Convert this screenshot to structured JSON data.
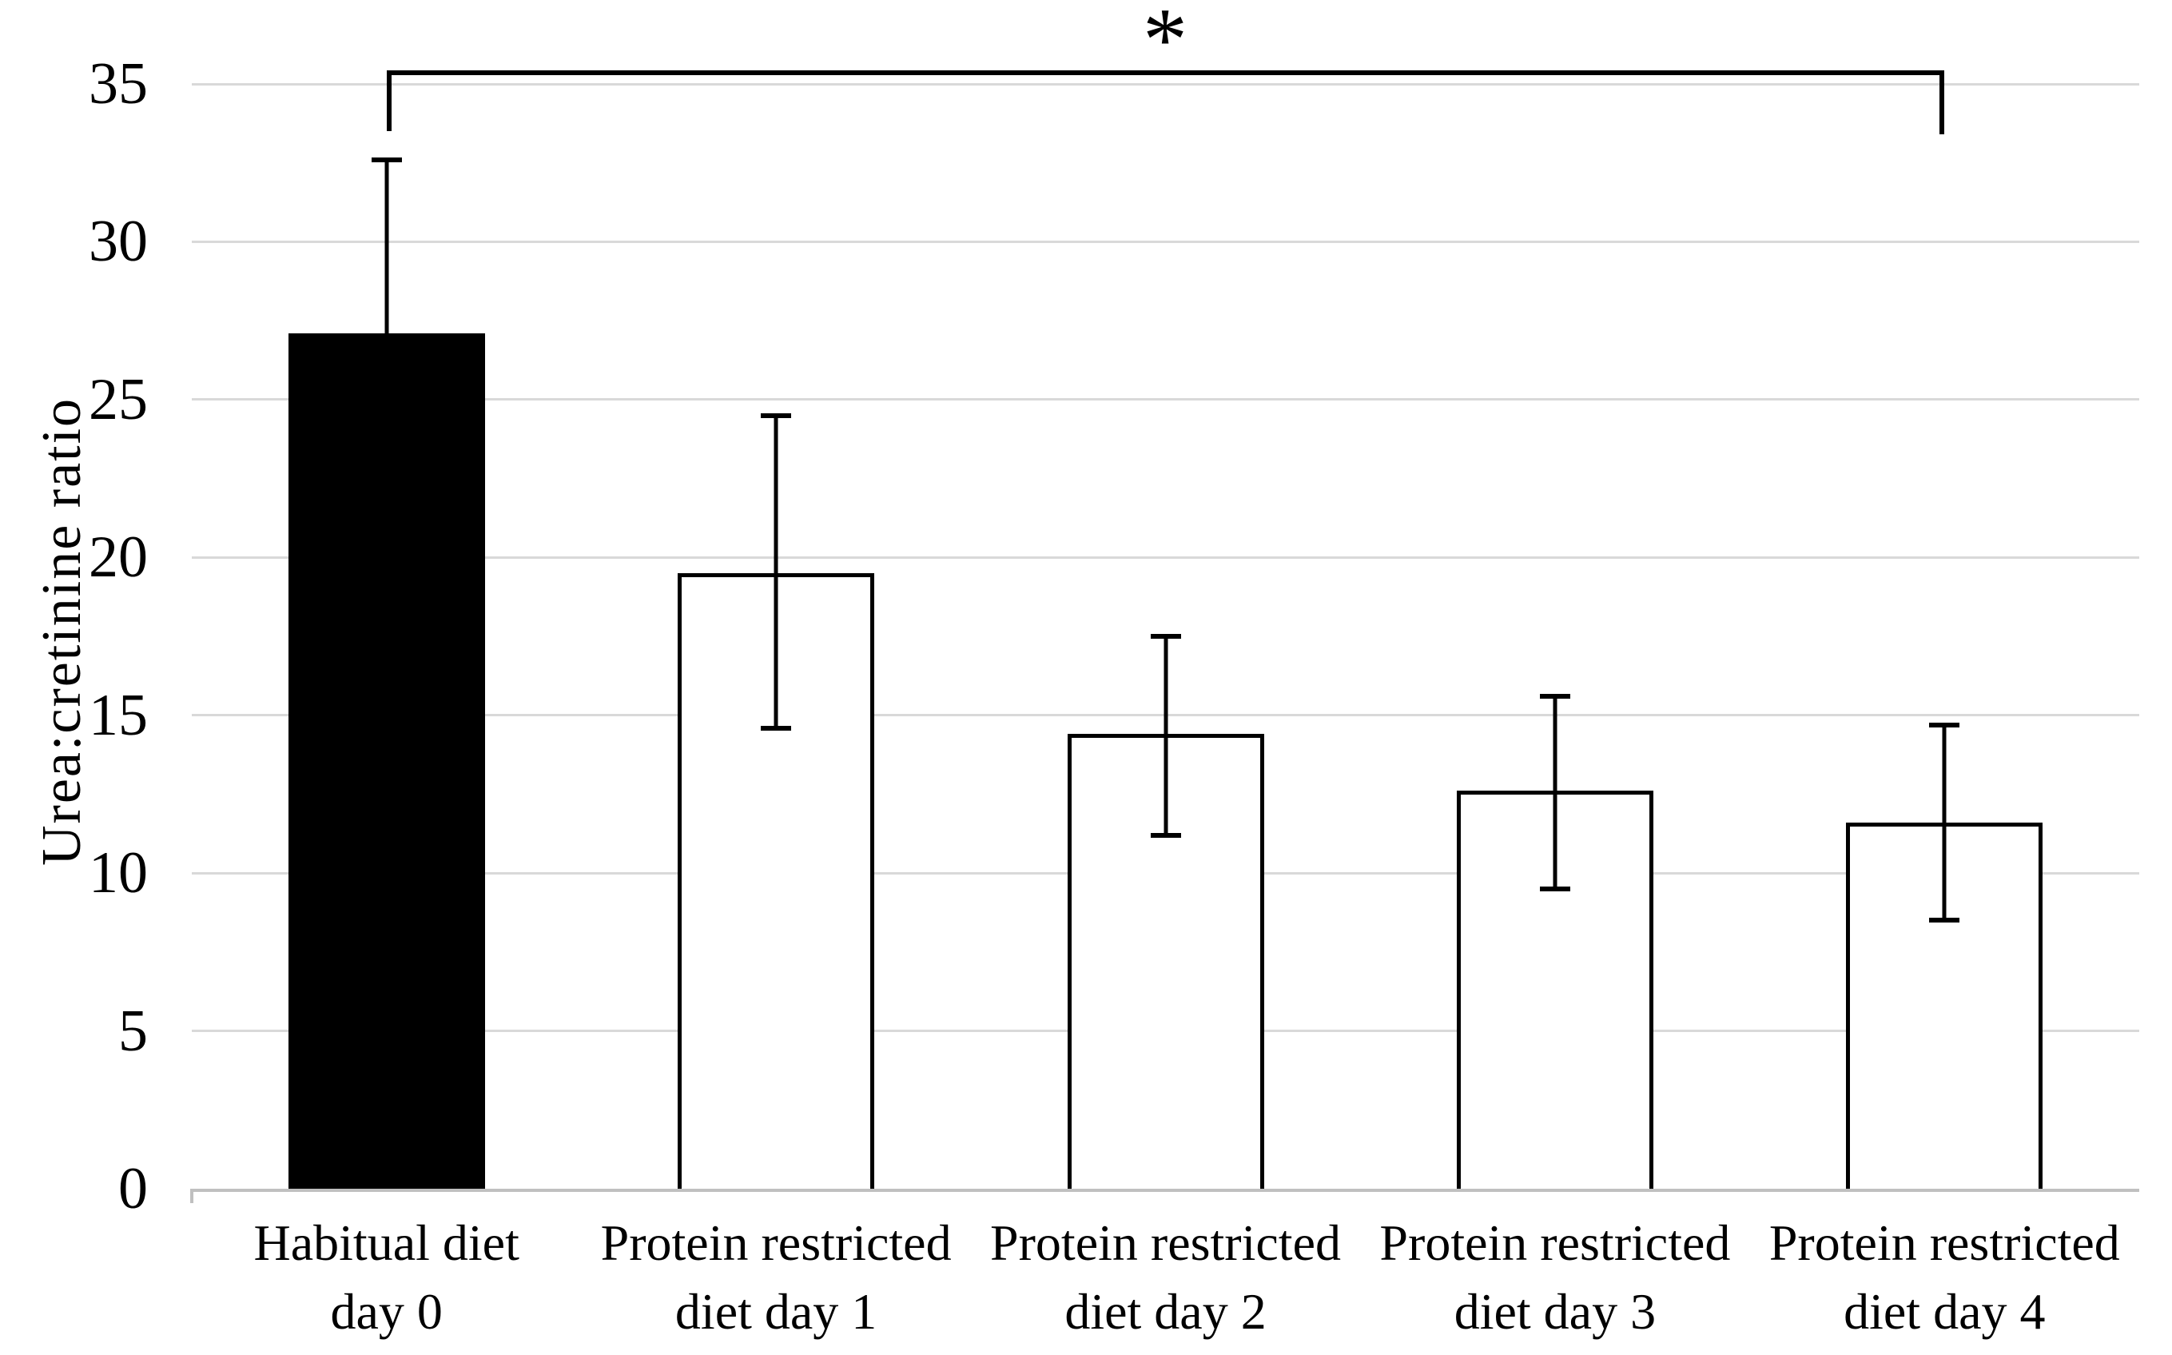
{
  "figure": {
    "background": "#ffffff"
  },
  "chart_data": {
    "type": "bar",
    "title": "",
    "xlabel": "",
    "ylabel": "Urea:cretinine ratio",
    "ylim": [
      0,
      35
    ],
    "yticks": [
      0,
      5,
      10,
      15,
      20,
      25,
      30,
      35
    ],
    "grid": true,
    "legend": "none",
    "categories": [
      "Habitual diet day 0",
      "Protein restricted diet day 1",
      "Protein restricted diet day 2",
      "Protein restricted diet day 3",
      "Protein restricted diet day 4"
    ],
    "category_lines": [
      [
        "Habitual diet",
        "day 0"
      ],
      [
        "Protein restricted",
        "diet day 1"
      ],
      [
        "Protein restricted",
        "diet day 2"
      ],
      [
        "Protein restricted",
        "diet day 3"
      ],
      [
        "Protein restricted",
        "diet day 4"
      ]
    ],
    "values": [
      27.1,
      19.5,
      14.4,
      12.6,
      11.6
    ],
    "error_bar_top": [
      32.6,
      24.5,
      17.5,
      15.6,
      14.7
    ],
    "error_bar_bottom": [
      null,
      14.6,
      11.2,
      9.5,
      8.5
    ],
    "bar_fill": [
      "#000000",
      "#ffffff",
      "#ffffff",
      "#ffffff",
      "#ffffff"
    ],
    "bar_border_color": "#000000",
    "significance_bracket": {
      "from_index": 0,
      "to_index": 4,
      "label": "*"
    },
    "colors": {
      "grid": "#d9d9d9",
      "axis": "#c0c0c0",
      "text": "#000000",
      "error_bars": "#000000"
    }
  }
}
